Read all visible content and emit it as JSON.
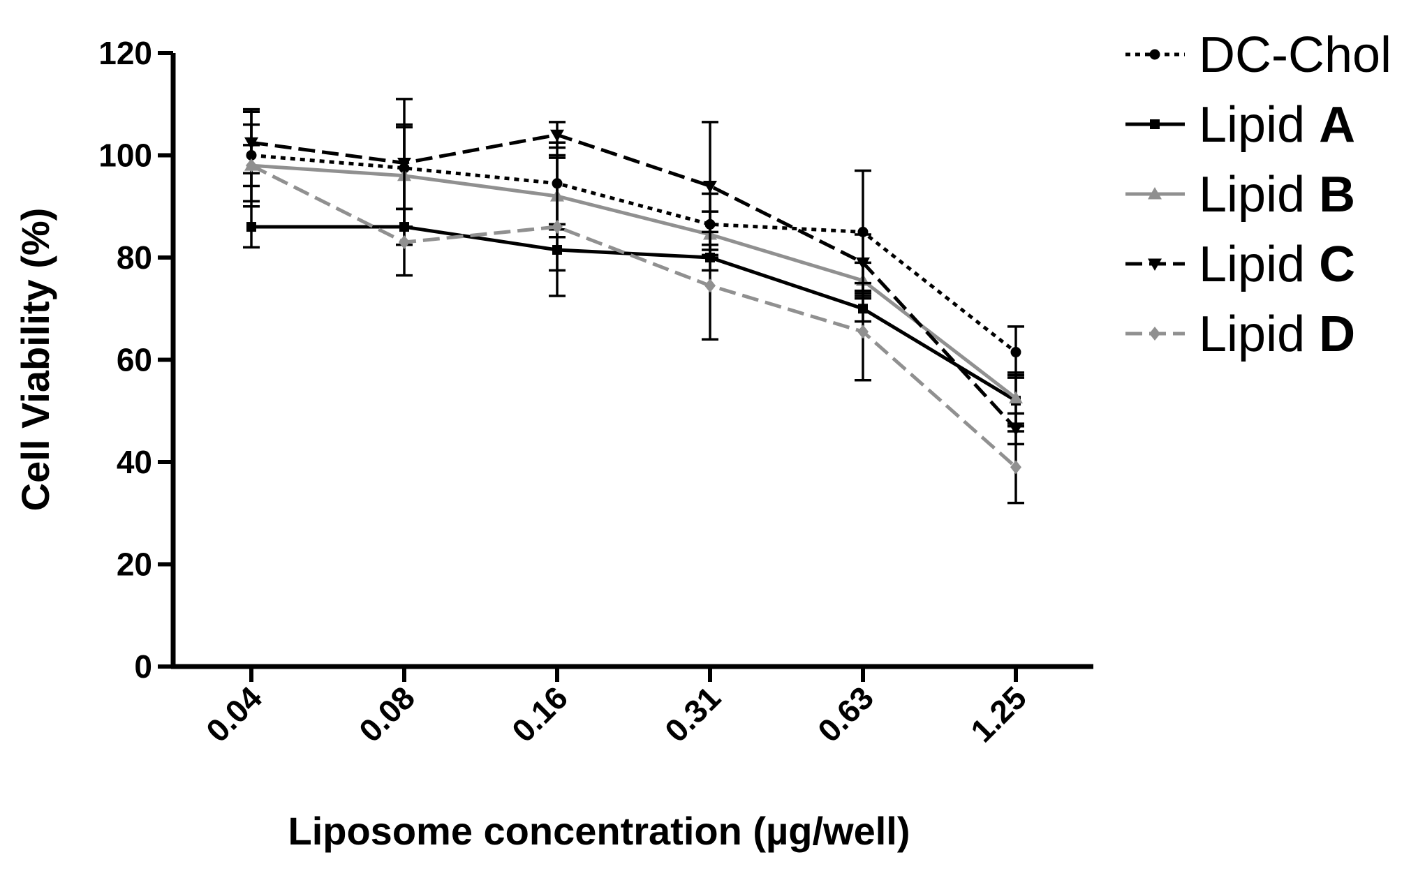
{
  "chart_data": {
    "type": "line",
    "title": "",
    "xlabel": "Liposome concentration (µg/well)",
    "ylabel": "Cell Viability (%)",
    "categories": [
      "0.04",
      "0.08",
      "0.16",
      "0.31",
      "0.63",
      "1.25"
    ],
    "ylim": [
      0,
      120
    ],
    "yticks": [
      "0",
      "20",
      "40",
      "60",
      "80",
      "100",
      "120"
    ],
    "legend_position": "top-right",
    "series": [
      {
        "name": "DC-Chol",
        "name_prefix": "DC-Chol",
        "name_bold": "",
        "values": [
          100,
          97.5,
          94.5,
          86.5,
          85,
          61.5
        ],
        "errors": [
          9,
          8,
          8,
          6,
          12,
          5
        ],
        "color": "#000000",
        "dash": "dotted",
        "marker": "circle"
      },
      {
        "name": "Lipid A",
        "name_prefix": "Lipid ",
        "name_bold": "A",
        "values": [
          86,
          86,
          81.5,
          80,
          70,
          52
        ],
        "errors": [
          4,
          3.5,
          4,
          2.5,
          2.5,
          5
        ],
        "color": "#000000",
        "dash": "solid",
        "marker": "square"
      },
      {
        "name": "Lipid B",
        "name_prefix": "Lipid ",
        "name_bold": "B",
        "values": [
          98,
          96,
          92,
          84.5,
          75.5,
          52.5
        ],
        "errors": [
          8,
          10,
          8,
          4.5,
          3.5,
          5
        ],
        "color": "#909090",
        "dash": "solid",
        "marker": "triangle-up"
      },
      {
        "name": "Lipid C",
        "name_prefix": "Lipid ",
        "name_bold": "C",
        "values": [
          102.5,
          98.5,
          104,
          94,
          79,
          46.5
        ],
        "errors": [
          6,
          12.5,
          2.5,
          12.5,
          5.5,
          3
        ],
        "color": "#000000",
        "dash": "dashed",
        "marker": "triangle-down"
      },
      {
        "name": "Lipid D",
        "name_prefix": "Lipid ",
        "name_bold": "D",
        "values": [
          98,
          83,
          86,
          74.5,
          65.5,
          39
        ],
        "errors": [
          4,
          6.5,
          13.5,
          10.5,
          9.5,
          7
        ],
        "color": "#909090",
        "dash": "dashed",
        "marker": "diamond"
      }
    ]
  }
}
